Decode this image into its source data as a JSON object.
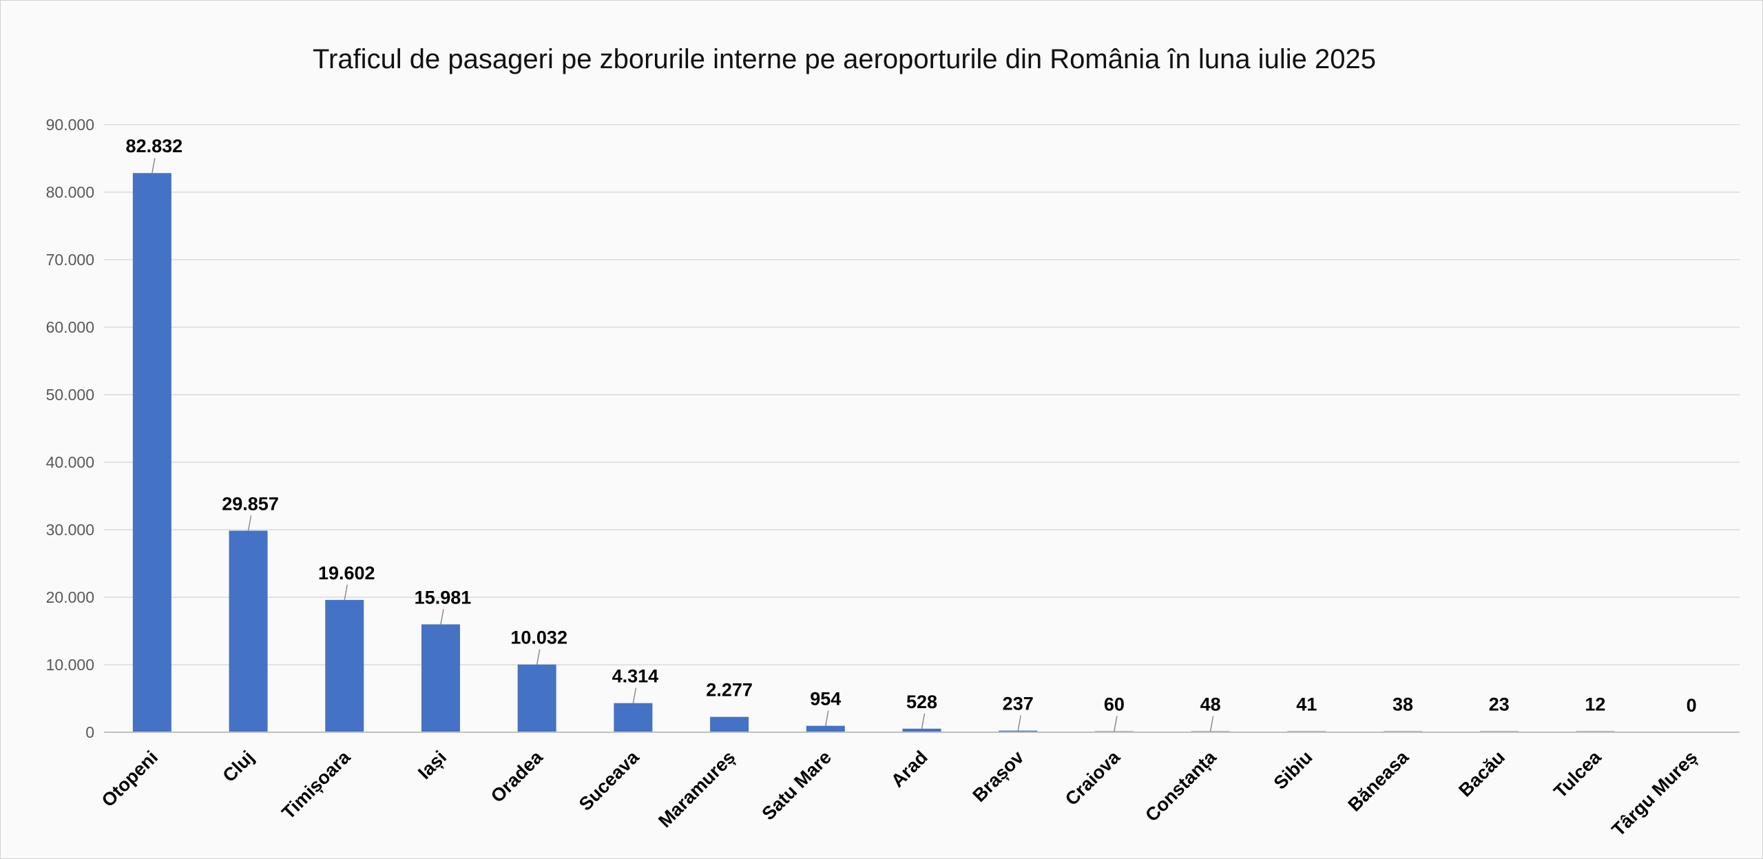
{
  "chart_data": {
    "type": "bar",
    "title": "Traficul de pasageri pe zborurile interne pe aeroporturile din România în luna iulie 2025",
    "xlabel": "",
    "ylabel": "",
    "categories": [
      "Otopeni",
      "Cluj",
      "Timișoara",
      "Iași",
      "Oradea",
      "Suceava",
      "Maramureș",
      "Satu Mare",
      "Arad",
      "Brașov",
      "Craiova",
      "Constanța",
      "Sibiu",
      "Băneasa",
      "Bacău",
      "Tulcea",
      "Târgu Mureș"
    ],
    "values": [
      82832,
      29857,
      19602,
      15981,
      10032,
      4314,
      2277,
      954,
      528,
      237,
      60,
      48,
      41,
      38,
      23,
      12,
      0
    ],
    "value_labels": [
      "82.832",
      "29.857",
      "19.602",
      "15.981",
      "10.032",
      "4.314",
      "2.277",
      "954",
      "528",
      "237",
      "60",
      "48",
      "41",
      "38",
      "23",
      "12",
      "0"
    ],
    "ylim": [
      0,
      90000
    ],
    "yticks": [
      0,
      10000,
      20000,
      30000,
      40000,
      50000,
      60000,
      70000,
      80000,
      90000
    ],
    "ytick_labels": [
      "0",
      "10.000",
      "20.000",
      "30.000",
      "40.000",
      "50.000",
      "60.000",
      "70.000",
      "80.000",
      "90.000"
    ],
    "grid": true,
    "legend": "none",
    "bar_color": "#4472C4"
  }
}
